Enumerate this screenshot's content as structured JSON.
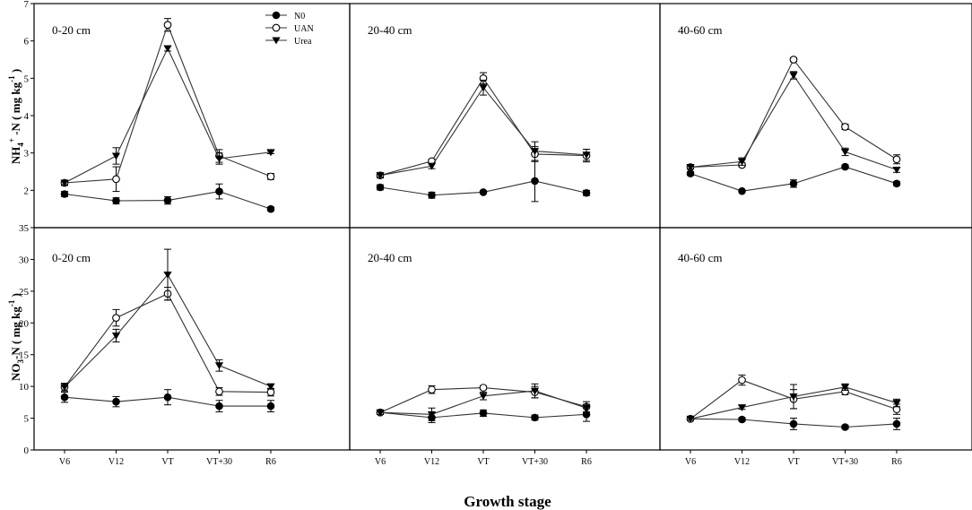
{
  "figure": {
    "xlabel": "Growth stage",
    "legend": {
      "position": "top-right of first panel",
      "entries": [
        "N0",
        "UAN",
        "Urea"
      ]
    }
  },
  "chart_data": [
    {
      "type": "line",
      "row": "NH4",
      "panel_label": "0-20 cm",
      "ylim": [
        1,
        7
      ],
      "yticks": [
        2,
        3,
        4,
        5,
        6,
        7
      ],
      "categories": [
        "V6",
        "V12",
        "VT",
        "VT+30",
        "R6"
      ],
      "series": [
        {
          "name": "N0",
          "marker": "filled-circle",
          "values": [
            1.9,
            1.72,
            1.73,
            1.97,
            1.5
          ],
          "errors": [
            0.07,
            0.08,
            0.1,
            0.2,
            0.05
          ]
        },
        {
          "name": "UAN",
          "marker": "open-circle",
          "values": [
            2.2,
            2.3,
            6.43,
            2.92,
            2.37
          ],
          "errors": [
            0.07,
            0.33,
            0.17,
            0.17,
            0.08
          ]
        },
        {
          "name": "Urea",
          "marker": "filled-triangle-down",
          "values": [
            2.2,
            2.92,
            5.8,
            2.85,
            3.02
          ],
          "errors": [
            0.05,
            0.22,
            0.07,
            0.15,
            0.04
          ]
        }
      ]
    },
    {
      "type": "line",
      "row": "NH4",
      "panel_label": "20-40 cm",
      "ylim": [
        1,
        7
      ],
      "categories": [
        "V6",
        "V12",
        "VT",
        "VT+30",
        "R6"
      ],
      "series": [
        {
          "name": "N0",
          "marker": "filled-circle",
          "values": [
            2.08,
            1.87,
            1.95,
            2.25,
            1.93
          ],
          "errors": [
            0.07,
            0.08,
            0.03,
            0.55,
            0.07
          ]
        },
        {
          "name": "UAN",
          "marker": "open-circle",
          "values": [
            2.4,
            2.78,
            5.0,
            2.97,
            2.93
          ],
          "errors": [
            0.07,
            0.05,
            0.15,
            0.2,
            0.17
          ]
        },
        {
          "name": "Urea",
          "marker": "filled-triangle-down",
          "values": [
            2.4,
            2.65,
            4.75,
            3.05,
            2.95
          ],
          "errors": [
            0.05,
            0.07,
            0.2,
            0.25,
            0.15
          ]
        }
      ]
    },
    {
      "type": "line",
      "row": "NH4",
      "panel_label": "40-60 cm",
      "ylim": [
        1,
        7
      ],
      "categories": [
        "V6",
        "V12",
        "VT",
        "VT+30",
        "R6"
      ],
      "series": [
        {
          "name": "N0",
          "marker": "filled-circle",
          "values": [
            2.45,
            1.98,
            2.18,
            2.63,
            2.18
          ],
          "errors": [
            0.05,
            0.03,
            0.1,
            0.05,
            0.05
          ]
        },
        {
          "name": "UAN",
          "marker": "open-circle",
          "values": [
            2.62,
            2.68,
            5.5,
            3.7,
            2.83
          ],
          "errors": [
            0.05,
            0.05,
            0.05,
            0.07,
            0.12
          ]
        },
        {
          "name": "Urea",
          "marker": "filled-triangle-down",
          "values": [
            2.62,
            2.77,
            5.08,
            3.03,
            2.55
          ],
          "errors": [
            0.05,
            0.1,
            0.1,
            0.1,
            0.07
          ]
        }
      ]
    },
    {
      "type": "line",
      "row": "NO3",
      "panel_label": "0-20 cm",
      "ylim": [
        0,
        35
      ],
      "yticks": [
        0,
        5,
        10,
        15,
        20,
        25,
        30,
        35
      ],
      "categories": [
        "V6",
        "V12",
        "VT",
        "VT+30",
        "R6"
      ],
      "series": [
        {
          "name": "N0",
          "marker": "filled-circle",
          "values": [
            8.3,
            7.6,
            8.3,
            6.9,
            6.9
          ],
          "errors": [
            0.8,
            0.8,
            1.2,
            0.9,
            0.9
          ]
        },
        {
          "name": "UAN",
          "marker": "open-circle",
          "values": [
            9.9,
            20.8,
            24.6,
            9.2,
            9.1
          ],
          "errors": [
            0.6,
            1.3,
            1.0,
            0.6,
            0.6
          ]
        },
        {
          "name": "Urea",
          "marker": "filled-triangle-down",
          "values": [
            9.9,
            18.0,
            27.6,
            13.3,
            10.0
          ],
          "errors": [
            0.6,
            1.0,
            4.0,
            0.9,
            0.4
          ]
        }
      ]
    },
    {
      "type": "line",
      "row": "NO3",
      "panel_label": "20-40 cm",
      "ylim": [
        0,
        35
      ],
      "categories": [
        "V6",
        "V12",
        "VT",
        "VT+30",
        "R6"
      ],
      "series": [
        {
          "name": "N0",
          "marker": "filled-circle",
          "values": [
            5.9,
            5.1,
            5.8,
            5.1,
            5.6
          ],
          "errors": [
            0.3,
            0.8,
            0.5,
            0.4,
            1.1
          ]
        },
        {
          "name": "UAN",
          "marker": "open-circle",
          "values": [
            5.9,
            9.5,
            9.8,
            9.1,
            6.8
          ],
          "errors": [
            0.3,
            0.6,
            0.3,
            0.9,
            0.8
          ]
        },
        {
          "name": "Urea",
          "marker": "filled-triangle-down",
          "values": [
            5.9,
            5.6,
            8.5,
            9.3,
            6.6
          ],
          "errors": [
            0.3,
            1.0,
            0.6,
            1.1,
            0.6
          ]
        }
      ]
    },
    {
      "type": "line",
      "row": "NO3",
      "panel_label": "40-60 cm",
      "ylim": [
        0,
        35
      ],
      "categories": [
        "V6",
        "V12",
        "VT",
        "VT+30",
        "R6"
      ],
      "series": [
        {
          "name": "N0",
          "marker": "filled-circle",
          "values": [
            4.9,
            4.8,
            4.1,
            3.6,
            4.1
          ],
          "errors": [
            0.2,
            0.3,
            0.9,
            0.3,
            0.9
          ]
        },
        {
          "name": "UAN",
          "marker": "open-circle",
          "values": [
            4.9,
            11.0,
            8.0,
            9.2,
            6.4
          ],
          "errors": [
            0.2,
            0.8,
            1.5,
            0.5,
            0.8
          ]
        },
        {
          "name": "Urea",
          "marker": "filled-triangle-down",
          "values": [
            4.9,
            6.7,
            8.4,
            9.9,
            7.4
          ],
          "errors": [
            0.2,
            0.3,
            1.9,
            0.5,
            0.6
          ]
        }
      ]
    }
  ]
}
